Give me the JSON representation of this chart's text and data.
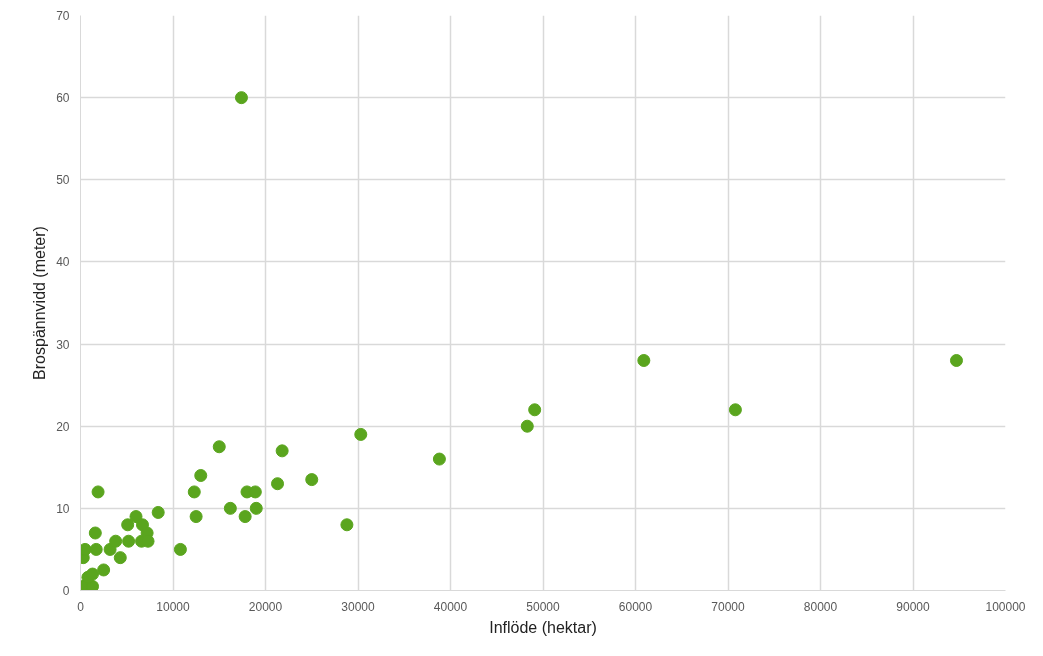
{
  "chart_data": {
    "type": "scatter",
    "xlabel": "Inflöde (hektar)",
    "ylabel": "Brospännvidd (meter)",
    "x": [
      300,
      1300,
      800,
      300,
      500,
      1700,
      1600,
      1900,
      1300,
      2500,
      3200,
      3800,
      4300,
      5100,
      5200,
      6000,
      6700,
      6600,
      7200,
      7300,
      8400,
      10800,
      12300,
      12500,
      13000,
      15000,
      16200,
      17400,
      17800,
      18000,
      18900,
      19000,
      21300,
      21800,
      25000,
      28800,
      30300,
      38800,
      48300,
      49100,
      60900,
      70800,
      94700
    ],
    "series": [
      {
        "color": "#5aa51e",
        "values": [
          0.5,
          0.5,
          1.6,
          4,
          5,
          5,
          7,
          12,
          2,
          2.5,
          5,
          6,
          4,
          8,
          6,
          9,
          8,
          6,
          7,
          6,
          9.5,
          5,
          12,
          9,
          14,
          17.5,
          10,
          60,
          9,
          12,
          12,
          10,
          13,
          17,
          13.5,
          8,
          19,
          16,
          20,
          22,
          28,
          22,
          28
        ]
      }
    ],
    "xlim": [
      0,
      100000
    ],
    "xticks": [
      0,
      10000,
      20000,
      30000,
      40000,
      50000,
      60000,
      70000,
      80000,
      90000,
      100000
    ],
    "ylim": [
      0,
      70
    ],
    "yticks": [
      0,
      10,
      20,
      30,
      40,
      50,
      60,
      70
    ],
    "grid": true,
    "marker": "circle"
  }
}
